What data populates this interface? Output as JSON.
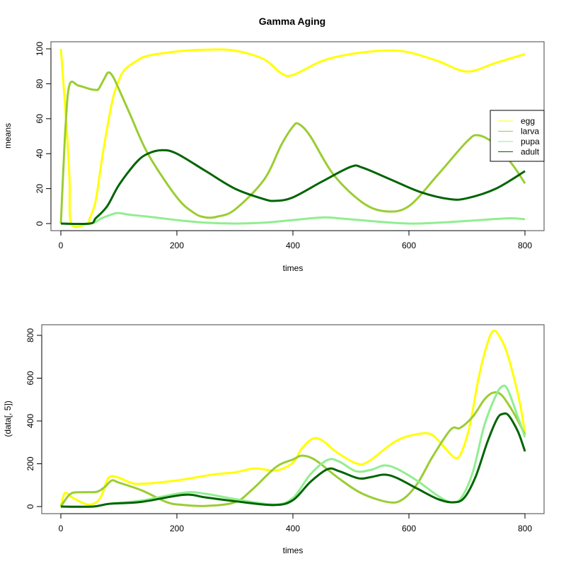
{
  "chart_data": [
    {
      "type": "line",
      "title": "Gamma Aging",
      "xlabel": "times",
      "ylabel": "means",
      "xlim": [
        0,
        800
      ],
      "ylim": [
        0,
        100
      ],
      "xticks": [
        0,
        200,
        400,
        600,
        800
      ],
      "yticks": [
        0,
        20,
        40,
        60,
        80,
        100
      ],
      "grid": false,
      "legend": {
        "placement": "right",
        "entries": [
          "egg",
          "larva",
          "pupa",
          "adult"
        ]
      },
      "series": [
        {
          "name": "egg",
          "color": "#FFFF00",
          "points": [
            [
              0,
              100
            ],
            [
              10,
              55
            ],
            [
              15,
              25
            ],
            [
              18,
              0
            ],
            [
              45,
              0
            ],
            [
              50,
              3
            ],
            [
              60,
              13
            ],
            [
              70,
              35
            ],
            [
              80,
              55
            ],
            [
              90,
              72
            ],
            [
              100,
              82
            ],
            [
              110,
              88
            ],
            [
              130,
              93
            ],
            [
              150,
              96
            ],
            [
              200,
              98.5
            ],
            [
              250,
              99.5
            ],
            [
              300,
              99
            ],
            [
              350,
              94
            ],
            [
              380,
              86
            ],
            [
              400,
              85
            ],
            [
              450,
              93
            ],
            [
              500,
              97
            ],
            [
              560,
              99
            ],
            [
              600,
              98
            ],
            [
              650,
              93
            ],
            [
              700,
              87
            ],
            [
              750,
              92
            ],
            [
              800,
              97
            ]
          ]
        },
        {
          "name": "larva",
          "color": "#9ACD32",
          "points": [
            [
              0,
              0
            ],
            [
              8,
              55
            ],
            [
              15,
              79.5
            ],
            [
              30,
              79
            ],
            [
              50,
              77
            ],
            [
              60,
              76.5
            ],
            [
              65,
              77
            ],
            [
              75,
              83
            ],
            [
              82,
              86.5
            ],
            [
              90,
              84
            ],
            [
              100,
              77
            ],
            [
              120,
              62
            ],
            [
              150,
              40
            ],
            [
              200,
              15
            ],
            [
              230,
              6
            ],
            [
              250,
              3.5
            ],
            [
              270,
              4
            ],
            [
              300,
              8
            ],
            [
              350,
              25
            ],
            [
              380,
              45
            ],
            [
              400,
              55.5
            ],
            [
              410,
              57
            ],
            [
              430,
              50
            ],
            [
              470,
              28
            ],
            [
              520,
              12
            ],
            [
              560,
              7
            ],
            [
              600,
              10
            ],
            [
              650,
              28
            ],
            [
              700,
              47
            ],
            [
              720,
              50.5
            ],
            [
              750,
              45
            ],
            [
              780,
              33
            ],
            [
              800,
              23
            ]
          ]
        },
        {
          "name": "pupa",
          "color": "#90EE90",
          "points": [
            [
              0,
              0
            ],
            [
              50,
              0
            ],
            [
              70,
              3
            ],
            [
              90,
              5.5
            ],
            [
              100,
              6
            ],
            [
              120,
              5
            ],
            [
              150,
              4
            ],
            [
              200,
              2
            ],
            [
              250,
              0.5
            ],
            [
              300,
              0
            ],
            [
              350,
              0.5
            ],
            [
              400,
              2
            ],
            [
              450,
              3.5
            ],
            [
              480,
              3
            ],
            [
              550,
              1
            ],
            [
              600,
              0
            ],
            [
              650,
              0.5
            ],
            [
              700,
              1.5
            ],
            [
              770,
              3
            ],
            [
              800,
              2.5
            ]
          ]
        },
        {
          "name": "adult",
          "color": "#006400",
          "points": [
            [
              0,
              0
            ],
            [
              50,
              0
            ],
            [
              60,
              3
            ],
            [
              80,
              10
            ],
            [
              100,
              22
            ],
            [
              130,
              35
            ],
            [
              150,
              40
            ],
            [
              175,
              42
            ],
            [
              200,
              40
            ],
            [
              250,
              30
            ],
            [
              300,
              20
            ],
            [
              350,
              14
            ],
            [
              370,
              13
            ],
            [
              400,
              15
            ],
            [
              450,
              24
            ],
            [
              500,
              32.5
            ],
            [
              520,
              32
            ],
            [
              570,
              25
            ],
            [
              620,
              18
            ],
            [
              670,
              14
            ],
            [
              700,
              14.5
            ],
            [
              750,
              20
            ],
            [
              800,
              30
            ]
          ]
        }
      ]
    },
    {
      "type": "line",
      "title": "",
      "xlabel": "times",
      "ylabel": "(data[, 5])",
      "xlim": [
        0,
        800
      ],
      "ylim": [
        0,
        800
      ],
      "xticks": [
        0,
        200,
        400,
        600,
        800
      ],
      "yticks": [
        0,
        200,
        400,
        600,
        800
      ],
      "grid": false,
      "series": [
        {
          "name": "egg",
          "color": "#FFFF00",
          "points": [
            [
              0,
              0
            ],
            [
              7,
              63
            ],
            [
              20,
              42
            ],
            [
              45,
              10
            ],
            [
              60,
              18
            ],
            [
              70,
              50
            ],
            [
              80,
              125
            ],
            [
              88,
              142
            ],
            [
              100,
              135
            ],
            [
              120,
              112
            ],
            [
              139,
              106
            ],
            [
              200,
              122
            ],
            [
              261,
              149
            ],
            [
              300,
              160
            ],
            [
              334,
              178
            ],
            [
              371,
              169
            ],
            [
              400,
              205
            ],
            [
              415,
              270
            ],
            [
              434,
              317
            ],
            [
              450,
              310
            ],
            [
              475,
              255
            ],
            [
              509,
              202
            ],
            [
              530,
              210
            ],
            [
              578,
              307
            ],
            [
              618,
              340
            ],
            [
              640,
              335
            ],
            [
              660,
              280
            ],
            [
              679,
              228
            ],
            [
              690,
              250
            ],
            [
              705,
              380
            ],
            [
              720,
              600
            ],
            [
              735,
              760
            ],
            [
              745,
              820
            ],
            [
              755,
              800
            ],
            [
              770,
              710
            ],
            [
              790,
              500
            ],
            [
              800,
              340
            ]
          ]
        },
        {
          "name": "larva",
          "color": "#9ACD32",
          "points": [
            [
              0,
              0
            ],
            [
              17,
              60
            ],
            [
              40,
              67
            ],
            [
              62,
              69
            ],
            [
              75,
              90
            ],
            [
              88,
              122
            ],
            [
              100,
              112
            ],
            [
              140,
              75
            ],
            [
              183,
              20
            ],
            [
              210,
              8
            ],
            [
              249,
              3
            ],
            [
              300,
              20
            ],
            [
              330,
              80
            ],
            [
              371,
              185
            ],
            [
              400,
              220
            ],
            [
              417,
              238
            ],
            [
              440,
              215
            ],
            [
              480,
              130
            ],
            [
              520,
              60
            ],
            [
              566,
              20
            ],
            [
              590,
              35
            ],
            [
              615,
              109
            ],
            [
              640,
              230
            ],
            [
              672,
              360
            ],
            [
              688,
              367
            ],
            [
              710,
              420
            ],
            [
              730,
              500
            ],
            [
              745,
              532
            ],
            [
              760,
              520
            ],
            [
              780,
              440
            ],
            [
              800,
              337
            ]
          ]
        },
        {
          "name": "pupa",
          "color": "#90EE90",
          "points": [
            [
              0,
              0
            ],
            [
              55,
              0
            ],
            [
              84,
              13
            ],
            [
              139,
              28
            ],
            [
              212,
              65
            ],
            [
              249,
              60
            ],
            [
              300,
              35
            ],
            [
              367,
              10
            ],
            [
              400,
              40
            ],
            [
              430,
              150
            ],
            [
              460,
              218
            ],
            [
              480,
              210
            ],
            [
              509,
              165
            ],
            [
              535,
              172
            ],
            [
              557,
              192
            ],
            [
              578,
              178
            ],
            [
              615,
              119
            ],
            [
              650,
              50
            ],
            [
              673,
              20
            ],
            [
              690,
              40
            ],
            [
              710,
              160
            ],
            [
              730,
              380
            ],
            [
              750,
              520
            ],
            [
              761,
              562
            ],
            [
              770,
              548
            ],
            [
              785,
              440
            ],
            [
              800,
              324
            ]
          ]
        },
        {
          "name": "adult",
          "color": "#006400",
          "points": [
            [
              0,
              0
            ],
            [
              55,
              0
            ],
            [
              84,
              13
            ],
            [
              139,
              22
            ],
            [
              212,
              55
            ],
            [
              249,
              43
            ],
            [
              300,
              25
            ],
            [
              367,
              7
            ],
            [
              400,
              30
            ],
            [
              430,
              115
            ],
            [
              460,
              175
            ],
            [
              480,
              165
            ],
            [
              513,
              132
            ],
            [
              535,
              138
            ],
            [
              557,
              149
            ],
            [
              578,
              135
            ],
            [
              615,
              83
            ],
            [
              650,
              35
            ],
            [
              676,
              20
            ],
            [
              695,
              40
            ],
            [
              715,
              140
            ],
            [
              735,
              300
            ],
            [
              752,
              410
            ],
            [
              762,
              433
            ],
            [
              772,
              425
            ],
            [
              788,
              350
            ],
            [
              800,
              258
            ]
          ]
        }
      ]
    }
  ]
}
